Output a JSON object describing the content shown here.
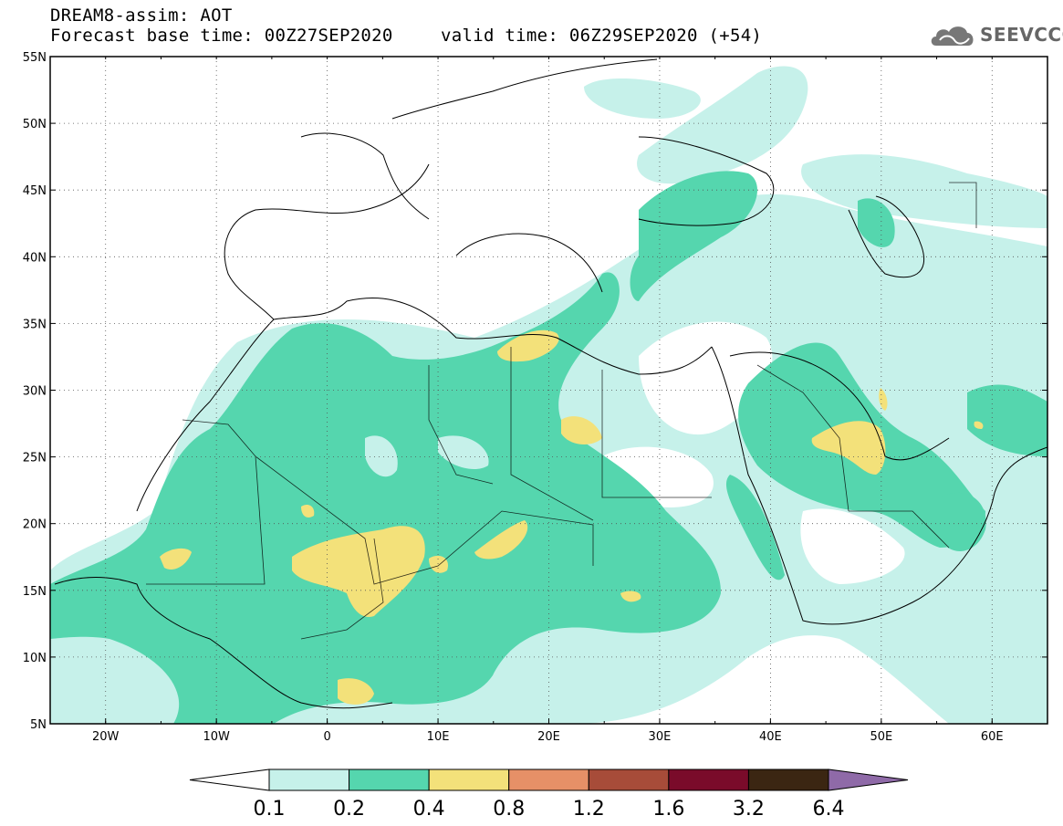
{
  "title": {
    "line1": "DREAM8-assim: AOT",
    "base_time": "Forecast base time: 00Z27SEP2020",
    "valid_time": "valid time: 06Z29SEP2020 (+54)"
  },
  "logo": {
    "text": "SEEVCCC",
    "icon": "cloud-icon"
  },
  "axes": {
    "lon_labels": [
      "20W",
      "10W",
      "0",
      "10E",
      "20E",
      "30E",
      "40E",
      "50E",
      "60E"
    ],
    "lat_labels": [
      "55N",
      "50N",
      "45N",
      "40N",
      "35N",
      "30N",
      "25N",
      "20N",
      "15N",
      "10N",
      "5N"
    ]
  },
  "colorbar": {
    "labels": [
      "0.1",
      "0.2",
      "0.4",
      "0.8",
      "1.2",
      "1.6",
      "3.2",
      "6.4"
    ],
    "colors": [
      "#ffffff",
      "#c6f1ea",
      "#55d6ae",
      "#f3e17a",
      "#e69067",
      "#a74c39",
      "#7a0b2a",
      "#3b2612",
      "#8f6aa8"
    ]
  }
}
